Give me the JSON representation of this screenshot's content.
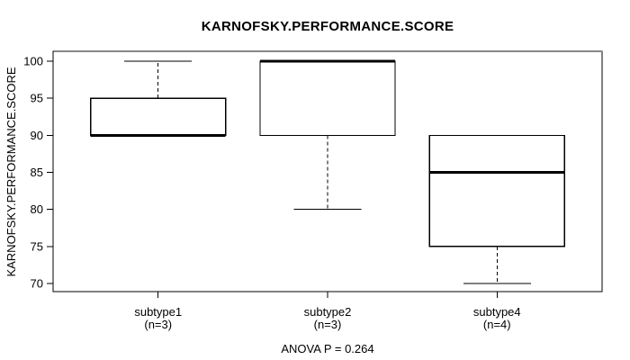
{
  "chart_data": {
    "type": "boxplot",
    "title": "KARNOFSKY.PERFORMANCE.SCORE",
    "ylabel": "KARNOFSKY.PERFORMANCE.SCORE",
    "xlabel": "",
    "footer": "ANOVA P = 0.264",
    "ylim": [
      68.9,
      101.35
    ],
    "yticks": [
      70,
      75,
      80,
      85,
      90,
      95,
      100
    ],
    "grid": false,
    "legend": "none",
    "colors": {
      "stroke": "#000000",
      "box_fill": "#ffffff",
      "background": "#ffffff",
      "frame_top_shadow": "#888888"
    },
    "groups": [
      {
        "label": "subtype1",
        "n_label": "(n=3)",
        "n": 3,
        "min": 90,
        "q1": 90,
        "median": 90,
        "q3": 95,
        "max": 100
      },
      {
        "label": "subtype2",
        "n_label": "(n=3)",
        "n": 3,
        "min": 80,
        "q1": 90,
        "median": 100,
        "q3": 100,
        "max": 100
      },
      {
        "label": "subtype4",
        "n_label": "(n=4)",
        "n": 4,
        "min": 70,
        "q1": 75,
        "median": 85,
        "q3": 90,
        "max": 90
      }
    ]
  }
}
